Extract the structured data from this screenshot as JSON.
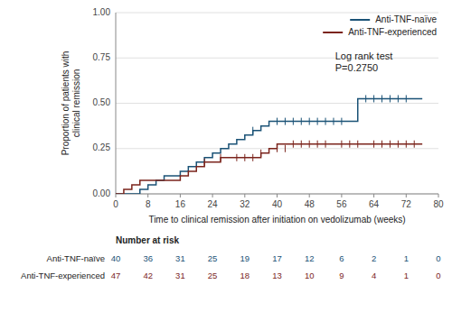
{
  "chart_data": {
    "type": "step",
    "ylabel": "Proportion of patients with\nclinical remission",
    "xlabel": "Time to clinical remission after initiation on vedolizumab (weeks)",
    "xlim": [
      0,
      80
    ],
    "ylim": [
      0,
      1.0
    ],
    "yticks": [
      {
        "value": 0.0,
        "label": "0.00"
      },
      {
        "value": 0.25,
        "label": "0.25"
      },
      {
        "value": 0.5,
        "label": "0.50"
      },
      {
        "value": 0.75,
        "label": "0.75"
      },
      {
        "value": 1.0,
        "label": "1.00"
      }
    ],
    "xticks": [
      0,
      8,
      16,
      24,
      32,
      40,
      48,
      56,
      64,
      72,
      80
    ],
    "grid": true,
    "legend": "upper right",
    "annotation": "Log rank test\nP=0.2750",
    "series": [
      {
        "name": "Anti-TNF-naïve",
        "color": "#1a5276",
        "x": [
          0,
          3,
          5,
          6,
          8,
          10,
          12,
          14,
          16,
          18,
          20,
          22,
          24,
          26,
          28,
          30,
          32,
          34,
          36,
          38,
          40,
          44,
          46,
          48,
          58,
          60,
          76
        ],
        "values": [
          0.0,
          0.0,
          0.0,
          0.025,
          0.05,
          0.075,
          0.1,
          0.1,
          0.125,
          0.15,
          0.175,
          0.2,
          0.225,
          0.25,
          0.275,
          0.3,
          0.325,
          0.35,
          0.375,
          0.4,
          0.4,
          0.4,
          0.4,
          0.4,
          0.4,
          0.525,
          0.525
        ],
        "censor_x": [
          34,
          40,
          42,
          44,
          46,
          48,
          50,
          52,
          54,
          56,
          62,
          64,
          66,
          68,
          70,
          72
        ],
        "censor_values": [
          0.35,
          0.4,
          0.4,
          0.4,
          0.4,
          0.4,
          0.4,
          0.4,
          0.4,
          0.4,
          0.525,
          0.525,
          0.525,
          0.525,
          0.525,
          0.525
        ]
      },
      {
        "name": "Anti-TNF-experienced",
        "color": "#7b241c",
        "x": [
          0,
          2,
          4,
          6,
          8,
          10,
          14,
          16,
          18,
          20,
          22,
          24,
          26,
          30,
          36,
          38,
          40,
          58,
          76
        ],
        "values": [
          0.0,
          0.025,
          0.05,
          0.075,
          0.075,
          0.075,
          0.075,
          0.1,
          0.125,
          0.15,
          0.175,
          0.175,
          0.2,
          0.2,
          0.225,
          0.25,
          0.275,
          0.275,
          0.275
        ],
        "censor_x": [
          22,
          26,
          30,
          32,
          34,
          36,
          40,
          42,
          44,
          46,
          48,
          50,
          52,
          56,
          58,
          60,
          64,
          66,
          68,
          70,
          72,
          74
        ],
        "censor_values": [
          0.175,
          0.2,
          0.2,
          0.2,
          0.2,
          0.225,
          0.25,
          0.25,
          0.275,
          0.275,
          0.275,
          0.275,
          0.275,
          0.275,
          0.275,
          0.275,
          0.275,
          0.275,
          0.275,
          0.275,
          0.275,
          0.275
        ]
      }
    ],
    "risk_table": {
      "title": "Number at risk",
      "x": [
        0,
        8,
        16,
        24,
        32,
        40,
        48,
        56,
        64,
        72,
        80
      ],
      "rows": [
        {
          "label": "   Anti-TNF-naïve",
          "values": [
            40,
            36,
            31,
            25,
            19,
            17,
            12,
            6,
            2,
            1,
            0
          ]
        },
        {
          "label": "Anti-TNF-experienced",
          "values": [
            47,
            42,
            31,
            25,
            18,
            13,
            10,
            9,
            4,
            1,
            0
          ]
        }
      ]
    }
  }
}
